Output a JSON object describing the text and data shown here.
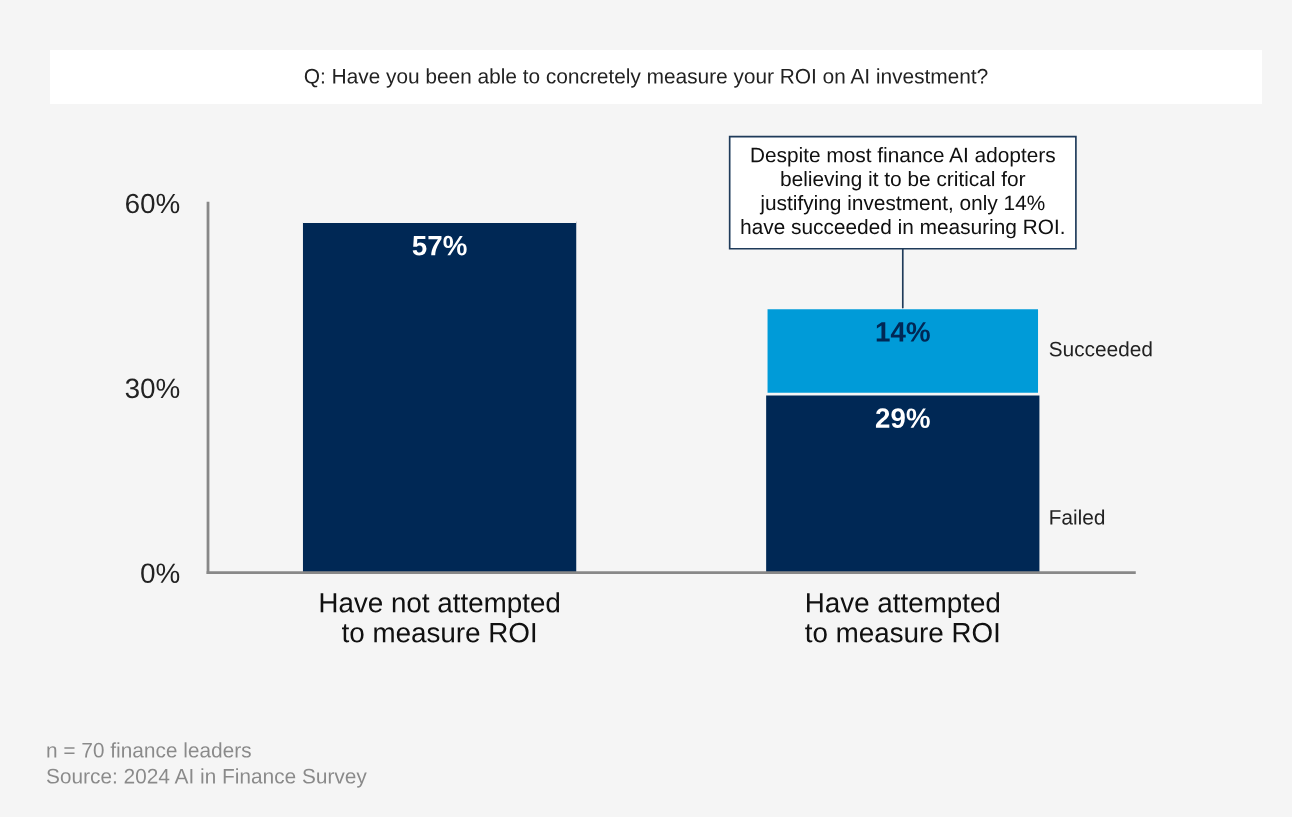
{
  "chart_data": {
    "type": "bar",
    "stacked": true,
    "title": "Q: Have you been able to concretely measure your ROI on AI investment?",
    "categories": [
      "Have not attempted\nto measure ROI",
      "Have attempted\nto measure ROI"
    ],
    "series": [
      {
        "name": "Failed",
        "color": "#002855",
        "values": [
          57,
          29
        ],
        "value_labels": [
          "57%",
          "29%"
        ]
      },
      {
        "name": "Succeeded",
        "color": "#009bd8",
        "values": [
          null,
          14
        ],
        "value_labels": [
          null,
          "14%"
        ]
      }
    ],
    "ylim": [
      0,
      60
    ],
    "yticks": [
      {
        "value": 0,
        "label": "0%"
      },
      {
        "value": 30,
        "label": "30%"
      },
      {
        "value": 60,
        "label": "60%"
      }
    ],
    "grid": false,
    "legend": false,
    "annotations": [
      {
        "text": "Despite most finance AI adopters\nbelieving it to be critical for\njustifying investment, only 14%\nhave succeeded in measuring ROI.",
        "x": "Have attempted\nto measure ROI",
        "y": 43
      },
      "n = 70 finance leaders",
      "Source: 2024 AI in Finance Survey"
    ]
  }
}
